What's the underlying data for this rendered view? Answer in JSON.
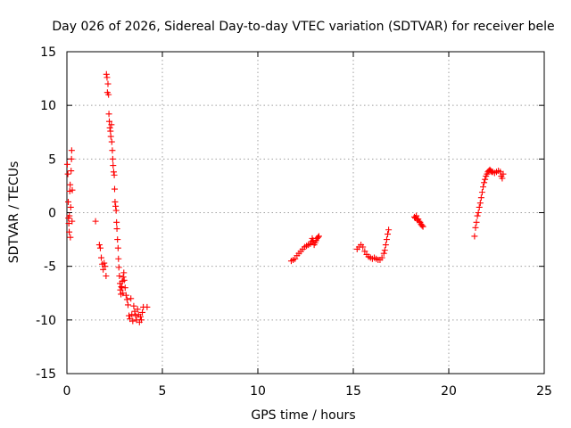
{
  "chart_data": {
    "type": "scatter",
    "title": "Day 026 of 2026, Sidereal Day-to-day VTEC variation (SDTVAR) for receiver bele",
    "xlabel": "GPS time / hours",
    "ylabel": "SDTVAR / TECUs",
    "xlim": [
      0,
      25
    ],
    "ylim": [
      -15,
      15
    ],
    "xticks": [
      0,
      5,
      10,
      15,
      20,
      25
    ],
    "yticks": [
      -15,
      -10,
      -5,
      0,
      5,
      10,
      15
    ],
    "xtick_labels": [
      "0",
      "5",
      "10",
      "15",
      "20",
      "25"
    ],
    "ytick_labels": [
      "-15",
      "-10",
      "-5",
      "0",
      "5",
      "10",
      "15"
    ],
    "grid": true,
    "marker": "+",
    "color": "#ff0000",
    "series": [
      {
        "name": "SDTVAR",
        "points": [
          [
            0.02,
            4.5
          ],
          [
            0.05,
            3.6
          ],
          [
            0.07,
            1.0
          ],
          [
            0.08,
            -0.5
          ],
          [
            0.1,
            -1.0
          ],
          [
            0.12,
            -1.8
          ],
          [
            0.13,
            -0.3
          ],
          [
            0.15,
            2.0
          ],
          [
            0.17,
            2.6
          ],
          [
            0.18,
            -2.3
          ],
          [
            0.2,
            0.5
          ],
          [
            0.22,
            3.9
          ],
          [
            0.24,
            5.0
          ],
          [
            0.25,
            5.8
          ],
          [
            0.27,
            -0.8
          ],
          [
            0.28,
            2.1
          ],
          [
            1.5,
            -0.8
          ],
          [
            1.7,
            -3.0
          ],
          [
            1.75,
            -3.3
          ],
          [
            1.8,
            -4.2
          ],
          [
            1.85,
            -4.8
          ],
          [
            1.9,
            -5.3
          ],
          [
            1.95,
            -4.7
          ],
          [
            2.0,
            -5.0
          ],
          [
            2.05,
            -5.9
          ],
          [
            2.07,
            12.9
          ],
          [
            2.1,
            12.6
          ],
          [
            2.12,
            11.2
          ],
          [
            2.15,
            12.0
          ],
          [
            2.18,
            11.0
          ],
          [
            2.2,
            9.2
          ],
          [
            2.22,
            8.5
          ],
          [
            2.25,
            7.9
          ],
          [
            2.28,
            7.6
          ],
          [
            2.3,
            7.1
          ],
          [
            2.33,
            8.2
          ],
          [
            2.35,
            6.6
          ],
          [
            2.38,
            5.8
          ],
          [
            2.4,
            5.0
          ],
          [
            2.42,
            4.4
          ],
          [
            2.45,
            3.8
          ],
          [
            2.48,
            3.5
          ],
          [
            2.5,
            2.2
          ],
          [
            2.52,
            1.0
          ],
          [
            2.55,
            0.6
          ],
          [
            2.58,
            0.2
          ],
          [
            2.6,
            -0.9
          ],
          [
            2.62,
            -1.5
          ],
          [
            2.65,
            -2.5
          ],
          [
            2.68,
            -3.3
          ],
          [
            2.7,
            -4.3
          ],
          [
            2.72,
            -5.1
          ],
          [
            2.75,
            -5.9
          ],
          [
            2.78,
            -6.6
          ],
          [
            2.8,
            -7.2
          ],
          [
            2.83,
            -7.6
          ],
          [
            2.85,
            -6.9
          ],
          [
            2.88,
            -7.0
          ],
          [
            2.9,
            -6.4
          ],
          [
            2.93,
            -7.5
          ],
          [
            2.95,
            -6.0
          ],
          [
            2.98,
            -5.6
          ],
          [
            3.0,
            -6.3
          ],
          [
            3.05,
            -7.0
          ],
          [
            3.1,
            -7.7
          ],
          [
            3.15,
            -8.1
          ],
          [
            3.2,
            -8.6
          ],
          [
            3.25,
            -9.6
          ],
          [
            3.3,
            -9.9
          ],
          [
            3.35,
            -8.0
          ],
          [
            3.4,
            -9.5
          ],
          [
            3.45,
            -10.1
          ],
          [
            3.5,
            -8.7
          ],
          [
            3.55,
            -9.2
          ],
          [
            3.6,
            -9.6
          ],
          [
            3.65,
            -10.0
          ],
          [
            3.7,
            -9.0
          ],
          [
            3.75,
            -9.5
          ],
          [
            3.8,
            -10.2
          ],
          [
            3.85,
            -9.7
          ],
          [
            3.9,
            -10.0
          ],
          [
            3.95,
            -9.3
          ],
          [
            4.0,
            -8.8
          ],
          [
            4.2,
            -8.8
          ],
          [
            11.75,
            -4.5
          ],
          [
            11.85,
            -4.4
          ],
          [
            11.95,
            -4.3
          ],
          [
            12.05,
            -4.0
          ],
          [
            12.15,
            -3.8
          ],
          [
            12.25,
            -3.6
          ],
          [
            12.35,
            -3.4
          ],
          [
            12.45,
            -3.2
          ],
          [
            12.55,
            -3.1
          ],
          [
            12.65,
            -3.0
          ],
          [
            12.75,
            -2.9
          ],
          [
            12.8,
            -2.7
          ],
          [
            12.85,
            -2.4
          ],
          [
            12.9,
            -2.6
          ],
          [
            12.95,
            -3.0
          ],
          [
            13.0,
            -2.8
          ],
          [
            13.05,
            -2.6
          ],
          [
            13.1,
            -2.4
          ],
          [
            13.15,
            -2.3
          ],
          [
            13.2,
            -2.2
          ],
          [
            15.2,
            -3.4
          ],
          [
            15.3,
            -3.2
          ],
          [
            15.4,
            -3.0
          ],
          [
            15.5,
            -3.2
          ],
          [
            15.6,
            -3.6
          ],
          [
            15.7,
            -3.9
          ],
          [
            15.8,
            -4.1
          ],
          [
            15.9,
            -4.2
          ],
          [
            16.0,
            -4.3
          ],
          [
            16.1,
            -4.2
          ],
          [
            16.2,
            -4.3
          ],
          [
            16.3,
            -4.4
          ],
          [
            16.4,
            -4.4
          ],
          [
            16.5,
            -4.2
          ],
          [
            16.6,
            -3.8
          ],
          [
            16.65,
            -3.5
          ],
          [
            16.7,
            -3.0
          ],
          [
            16.75,
            -2.5
          ],
          [
            16.8,
            -2.0
          ],
          [
            16.85,
            -1.6
          ],
          [
            18.2,
            -0.4
          ],
          [
            18.25,
            -0.5
          ],
          [
            18.3,
            -0.3
          ],
          [
            18.35,
            -0.7
          ],
          [
            18.4,
            -0.6
          ],
          [
            18.45,
            -0.8
          ],
          [
            18.5,
            -0.9
          ],
          [
            18.55,
            -1.1
          ],
          [
            18.6,
            -1.2
          ],
          [
            18.65,
            -1.3
          ],
          [
            21.35,
            -2.2
          ],
          [
            21.4,
            -1.4
          ],
          [
            21.45,
            -0.9
          ],
          [
            21.5,
            -0.3
          ],
          [
            21.55,
            0.0
          ],
          [
            21.6,
            0.5
          ],
          [
            21.65,
            0.9
          ],
          [
            21.7,
            1.4
          ],
          [
            21.75,
            1.9
          ],
          [
            21.8,
            2.4
          ],
          [
            21.85,
            2.8
          ],
          [
            21.9,
            3.1
          ],
          [
            21.95,
            3.4
          ],
          [
            22.0,
            3.6
          ],
          [
            22.05,
            3.8
          ],
          [
            22.1,
            3.9
          ],
          [
            22.15,
            4.0
          ],
          [
            22.2,
            3.9
          ],
          [
            22.25,
            3.8
          ],
          [
            22.3,
            3.8
          ],
          [
            22.4,
            3.7
          ],
          [
            22.5,
            3.8
          ],
          [
            22.6,
            3.9
          ],
          [
            22.7,
            3.8
          ],
          [
            22.75,
            3.4
          ],
          [
            22.8,
            3.2
          ],
          [
            22.85,
            3.6
          ]
        ]
      }
    ]
  }
}
